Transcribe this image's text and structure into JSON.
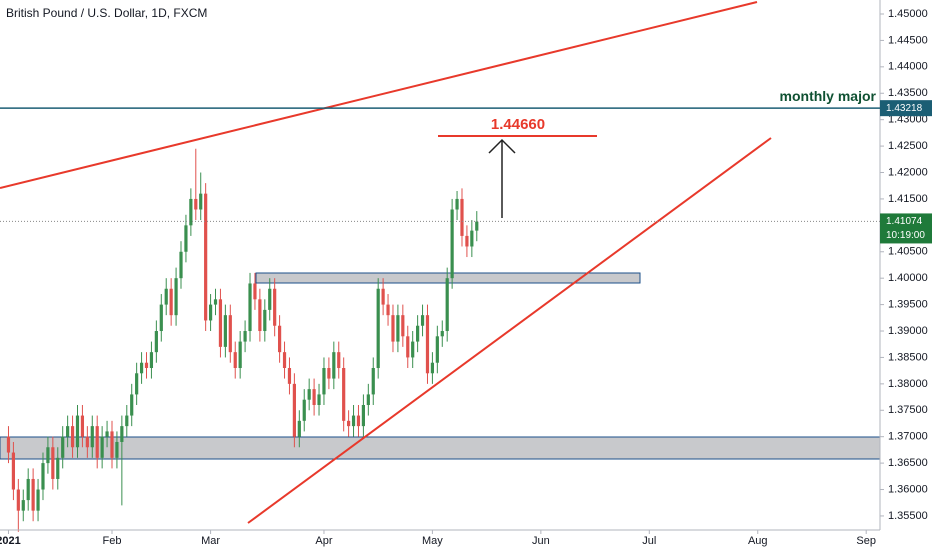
{
  "chart_data": {
    "type": "candlestick",
    "title": "British Pound / U.S. Dollar, 1D, FXCM",
    "up_color": "#3a8f4f",
    "down_color": "#e0514d",
    "xlim": [
      -22.72,
      155.8
    ],
    "xticks": [
      {
        "value": -21,
        "label": "2021"
      },
      {
        "value": 0,
        "label": "Feb"
      },
      {
        "value": 20,
        "label": "Mar"
      },
      {
        "value": 43,
        "label": "Apr"
      },
      {
        "value": 65,
        "label": "May"
      },
      {
        "value": 87,
        "label": "Jun"
      },
      {
        "value": 109,
        "label": "Jul"
      },
      {
        "value": 131,
        "label": "Aug"
      },
      {
        "value": 153,
        "label": "Sep"
      }
    ],
    "ylim": [
      1.35234,
      1.45265
    ],
    "yticks": [
      {
        "value": 1.45,
        "label": "1.45000"
      },
      {
        "value": 1.445,
        "label": "1.44500"
      },
      {
        "value": 1.44,
        "label": "1.44000"
      },
      {
        "value": 1.435,
        "label": "1.43500"
      },
      {
        "value": 1.43,
        "label": "1.43000"
      },
      {
        "value": 1.425,
        "label": "1.42500"
      },
      {
        "value": 1.42,
        "label": "1.42000"
      },
      {
        "value": 1.415,
        "label": "1.41500"
      },
      {
        "value": 1.41,
        "label": "1.41000"
      },
      {
        "value": 1.405,
        "label": "1.40500"
      },
      {
        "value": 1.4,
        "label": "1.40000"
      },
      {
        "value": 1.395,
        "label": "1.39500"
      },
      {
        "value": 1.39,
        "label": "1.39000"
      },
      {
        "value": 1.385,
        "label": "1.38500"
      },
      {
        "value": 1.38,
        "label": "1.38000"
      },
      {
        "value": 1.375,
        "label": "1.37500"
      },
      {
        "value": 1.37,
        "label": "1.37000"
      },
      {
        "value": 1.365,
        "label": "1.36500"
      },
      {
        "value": 1.36,
        "label": "1.36000"
      },
      {
        "value": 1.355,
        "label": "1.35500"
      }
    ],
    "x": [
      -21,
      -20,
      -19,
      -18,
      -17,
      -16,
      -15,
      -14,
      -13,
      -12,
      -11,
      -10,
      -9,
      -8,
      -7,
      -6,
      -5,
      -4,
      -3,
      -2,
      -1,
      0,
      1,
      2,
      3,
      4,
      5,
      6,
      7,
      8,
      9,
      10,
      11,
      12,
      13,
      14,
      15,
      16,
      17,
      18,
      19,
      20,
      21,
      22,
      23,
      24,
      25,
      26,
      27,
      28,
      29,
      30,
      31,
      32,
      33,
      34,
      35,
      36,
      37,
      38,
      39,
      40,
      41,
      42,
      43,
      44,
      45,
      46,
      47,
      48,
      49,
      50,
      51,
      52,
      53,
      54,
      55,
      56,
      57,
      58,
      59,
      60,
      61,
      62,
      63,
      64,
      65,
      66,
      67,
      68,
      69,
      70,
      71,
      72,
      73,
      74
    ],
    "open": [
      1.37,
      1.367,
      1.36,
      1.356,
      1.358,
      1.362,
      1.356,
      1.36,
      1.365,
      1.368,
      1.362,
      1.366,
      1.37,
      1.372,
      1.368,
      1.374,
      1.37,
      1.368,
      1.372,
      1.366,
      1.37,
      1.371,
      1.366,
      1.369,
      1.372,
      1.374,
      1.378,
      1.382,
      1.384,
      1.383,
      1.386,
      1.39,
      1.395,
      1.398,
      1.393,
      1.4,
      1.405,
      1.41,
      1.415,
      1.413,
      1.416,
      1.392,
      1.395,
      1.396,
      1.387,
      1.393,
      1.386,
      1.383,
      1.388,
      1.39,
      1.399,
      1.396,
      1.39,
      1.394,
      1.398,
      1.391,
      1.386,
      1.383,
      1.38,
      1.37,
      1.373,
      1.377,
      1.379,
      1.376,
      1.378,
      1.383,
      1.381,
      1.386,
      1.383,
      1.373,
      1.372,
      1.374,
      1.372,
      1.376,
      1.378,
      1.383,
      1.398,
      1.395,
      1.393,
      1.388,
      1.393,
      1.389,
      1.385,
      1.388,
      1.391,
      1.393,
      1.382,
      1.384,
      1.389,
      1.39,
      1.4,
      1.413,
      1.415,
      1.408,
      1.406,
      1.409
    ],
    "high": [
      1.372,
      1.369,
      1.362,
      1.36,
      1.364,
      1.364,
      1.362,
      1.367,
      1.37,
      1.37,
      1.368,
      1.372,
      1.374,
      1.374,
      1.376,
      1.376,
      1.372,
      1.374,
      1.374,
      1.372,
      1.373,
      1.373,
      1.371,
      1.374,
      1.376,
      1.38,
      1.384,
      1.386,
      1.386,
      1.388,
      1.392,
      1.397,
      1.4,
      1.4,
      1.402,
      1.407,
      1.412,
      1.417,
      1.4245,
      1.42,
      1.418,
      1.397,
      1.398,
      1.398,
      1.395,
      1.395,
      1.388,
      1.39,
      1.392,
      1.401,
      1.401,
      1.398,
      1.396,
      1.4,
      1.4,
      1.393,
      1.388,
      1.385,
      1.382,
      1.375,
      1.379,
      1.381,
      1.381,
      1.38,
      1.385,
      1.385,
      1.388,
      1.388,
      1.385,
      1.375,
      1.376,
      1.376,
      1.378,
      1.38,
      1.385,
      1.4,
      1.4,
      1.397,
      1.395,
      1.395,
      1.395,
      1.391,
      1.39,
      1.393,
      1.395,
      1.395,
      1.386,
      1.391,
      1.392,
      1.402,
      1.415,
      1.4165,
      1.417,
      1.41,
      1.411,
      1.4127
    ],
    "low": [
      1.365,
      1.358,
      1.352,
      1.354,
      1.356,
      1.354,
      1.354,
      1.358,
      1.363,
      1.36,
      1.36,
      1.364,
      1.368,
      1.366,
      1.366,
      1.368,
      1.366,
      1.366,
      1.364,
      1.364,
      1.368,
      1.364,
      1.364,
      1.357,
      1.37,
      1.372,
      1.376,
      1.38,
      1.381,
      1.381,
      1.384,
      1.388,
      1.393,
      1.391,
      1.391,
      1.398,
      1.403,
      1.408,
      1.411,
      1.411,
      1.39,
      1.39,
      1.393,
      1.385,
      1.385,
      1.384,
      1.381,
      1.381,
      1.386,
      1.388,
      1.394,
      1.388,
      1.388,
      1.392,
      1.389,
      1.384,
      1.381,
      1.378,
      1.368,
      1.368,
      1.371,
      1.375,
      1.374,
      1.374,
      1.376,
      1.379,
      1.379,
      1.381,
      1.371,
      1.37,
      1.37,
      1.37,
      1.37,
      1.374,
      1.376,
      1.381,
      1.393,
      1.391,
      1.386,
      1.386,
      1.387,
      1.383,
      1.383,
      1.386,
      1.389,
      1.38,
      1.38,
      1.382,
      1.387,
      1.388,
      1.398,
      1.411,
      1.406,
      1.404,
      1.404,
      1.407
    ],
    "close": [
      1.367,
      1.36,
      1.356,
      1.358,
      1.362,
      1.356,
      1.36,
      1.365,
      1.368,
      1.362,
      1.366,
      1.37,
      1.372,
      1.368,
      1.374,
      1.37,
      1.368,
      1.372,
      1.366,
      1.37,
      1.371,
      1.366,
      1.369,
      1.372,
      1.374,
      1.378,
      1.382,
      1.384,
      1.383,
      1.386,
      1.39,
      1.395,
      1.398,
      1.393,
      1.4,
      1.405,
      1.41,
      1.415,
      1.413,
      1.416,
      1.392,
      1.395,
      1.396,
      1.387,
      1.393,
      1.386,
      1.383,
      1.388,
      1.39,
      1.399,
      1.396,
      1.39,
      1.394,
      1.398,
      1.391,
      1.386,
      1.383,
      1.38,
      1.37,
      1.373,
      1.377,
      1.379,
      1.376,
      1.378,
      1.383,
      1.381,
      1.386,
      1.383,
      1.373,
      1.372,
      1.374,
      1.372,
      1.376,
      1.378,
      1.383,
      1.398,
      1.395,
      1.393,
      1.388,
      1.393,
      1.389,
      1.385,
      1.388,
      1.391,
      1.393,
      1.382,
      1.384,
      1.389,
      1.39,
      1.4,
      1.413,
      1.415,
      1.408,
      1.406,
      1.409,
      1.4107
    ],
    "level": {
      "value": 1.43218,
      "label": "1.43218",
      "name": "monthly major",
      "color": "#1b5e74"
    },
    "current": {
      "value": 1.41074,
      "label": "1.41074",
      "countdown": "10:19:00",
      "color": "#1f7a3a"
    },
    "target_label": "1.44660"
  }
}
